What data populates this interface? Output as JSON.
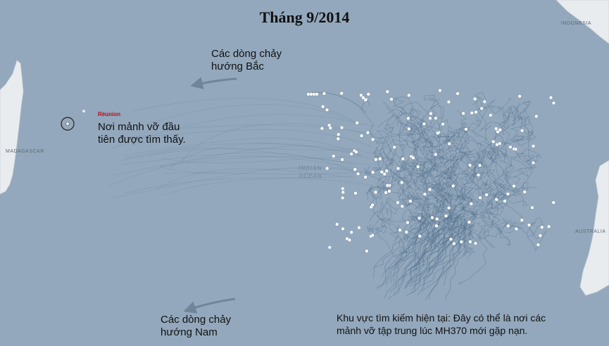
{
  "title": "Tháng 9/2014",
  "annotations": {
    "north_currents": [
      "Các dòng chảy",
      "hướng Bắc"
    ],
    "south_currents": [
      "Các dòng chảy",
      "hướng Nam"
    ],
    "reunion_label": "Réunion",
    "debris_found": [
      "Nơi mảnh vỡ đầu",
      "tiên được tìm thấy."
    ],
    "search_area": [
      "Khu vực tìm kiếm hiện tại: Đây có thể là nơi các",
      "mảnh vỡ tập trung lúc MH370 mới gặp nạn."
    ]
  },
  "regions": {
    "madagascar": "MADAGASCAR",
    "indonesia": "INDONESIA",
    "australia": "AUSTRALIA",
    "ocean": [
      "INDIAN",
      "OCEAN"
    ]
  },
  "colors": {
    "ocean": "#93a8bc",
    "land": "#e9ecef",
    "drift_lines": "#4c6a86",
    "arrow": "#6c7f93",
    "debris_dot": "#ffffff",
    "reunion_label": "#b01020"
  }
}
